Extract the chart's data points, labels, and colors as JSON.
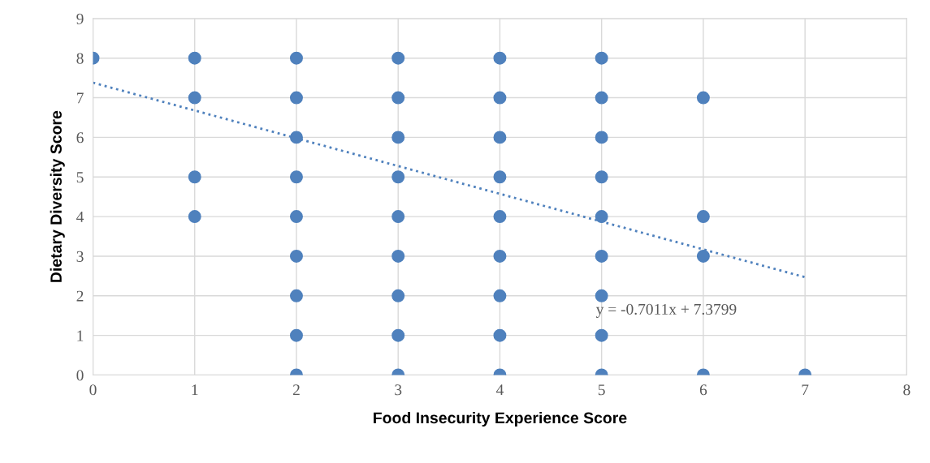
{
  "chart_data": {
    "type": "scatter",
    "xlabel": "Food Insecurity Experience Score",
    "ylabel": "Dietary Diversity Score",
    "xlim": [
      0,
      8
    ],
    "ylim": [
      0,
      9
    ],
    "xticks": [
      0,
      1,
      2,
      3,
      4,
      5,
      6,
      7,
      8
    ],
    "yticks": [
      0,
      1,
      2,
      3,
      4,
      5,
      6,
      7,
      8,
      9
    ],
    "grid": true,
    "marker": "circle",
    "annotations": [
      "y = -0.7011x + 7.3799"
    ],
    "series": [
      {
        "color": "#4f81bd",
        "x": [
          0,
          1,
          1,
          1,
          1,
          2,
          2,
          2,
          2,
          2,
          2,
          2,
          2,
          2,
          3,
          3,
          3,
          3,
          3,
          3,
          3,
          3,
          3,
          4,
          4,
          4,
          4,
          4,
          4,
          4,
          4,
          4,
          5,
          5,
          5,
          5,
          5,
          5,
          5,
          5,
          5,
          6,
          6,
          6,
          6,
          7
        ],
        "values": [
          8,
          8,
          7,
          5,
          4,
          8,
          7,
          6,
          5,
          4,
          3,
          2,
          1,
          0,
          8,
          7,
          6,
          5,
          4,
          3,
          2,
          1,
          0,
          8,
          7,
          6,
          5,
          4,
          3,
          2,
          1,
          0,
          8,
          7,
          6,
          5,
          4,
          3,
          2,
          1,
          0,
          7,
          4,
          3,
          0,
          0
        ]
      },
      {
        "type": "line",
        "color": "#4f81bd",
        "line_style": "dotted",
        "marker": "none",
        "x": [
          0,
          7
        ],
        "values": [
          7.38,
          2.47
        ]
      }
    ]
  }
}
